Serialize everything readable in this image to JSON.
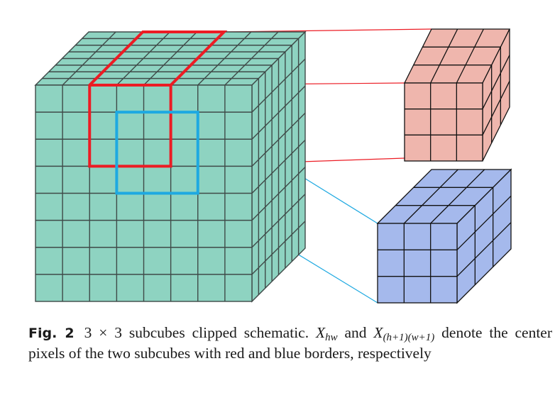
{
  "figure": {
    "colors": {
      "main_cube": "#8ed3c1",
      "main_grid": "#3f4a48",
      "red_subcube": "#efb6ad",
      "red_border": "#ec1c24",
      "blue_subcube": "#a5b9ec",
      "blue_border": "#1ea9e1",
      "subcube_grid": "#111111"
    },
    "grids": {
      "main": 8,
      "subcube": 3
    }
  },
  "caption": {
    "label": "Fig. 2",
    "part1": "3 × 3 subcubes clipped schematic. ",
    "x1_base": "X",
    "x1_sub": "hw",
    "and": " and ",
    "x2_base": "X",
    "x2_sub": "(h+1)(w+1)",
    "part2": " denote the center pixels of the two subcubes with red and blue borders, respectively"
  }
}
